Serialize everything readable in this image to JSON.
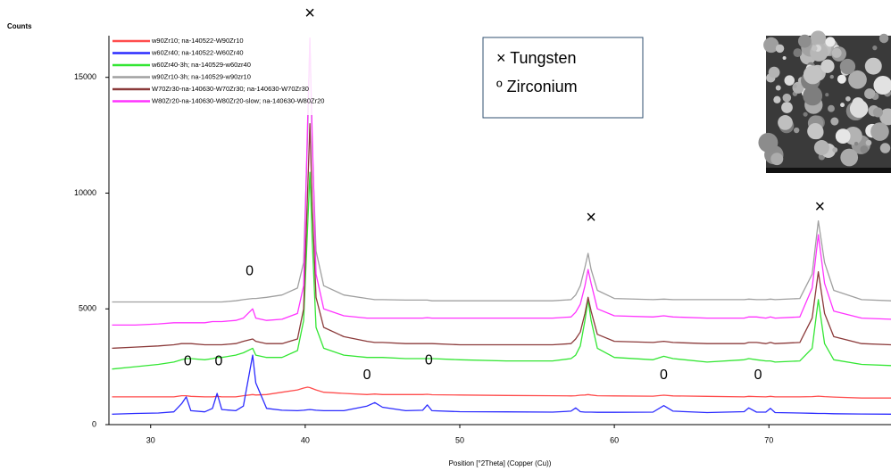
{
  "chart_data": {
    "type": "line",
    "y_label": "Counts",
    "x_label": "Position [°2Theta] (Copper (Cu))",
    "xlim": [
      27.3,
      77.9
    ],
    "ylim": [
      0,
      16800
    ],
    "xticks": [
      30,
      40,
      50,
      60,
      70
    ],
    "yticks": [
      0,
      5000,
      10000,
      15000
    ],
    "grid": false,
    "legend": "top-left",
    "key": [
      "× Tungsten",
      "º Zirconium"
    ],
    "x": [
      27.5,
      29,
      30.5,
      31.5,
      32.0,
      32.3,
      32.6,
      33.5,
      34.0,
      34.3,
      34.6,
      35.5,
      36.0,
      36.6,
      36.8,
      37.5,
      38.5,
      39.5,
      39.9,
      40.15,
      40.3,
      40.45,
      40.7,
      41.2,
      42.5,
      44.0,
      44.5,
      45.0,
      46.5,
      47.6,
      47.9,
      48.2,
      50,
      53,
      56,
      57.2,
      57.5,
      57.8,
      58.1,
      58.3,
      58.5,
      58.9,
      60,
      62.5,
      63.2,
      63.8,
      66,
      68.4,
      68.7,
      69.2,
      69.8,
      70.1,
      70.4,
      72.0,
      72.8,
      73.2,
      73.6,
      74.2,
      76,
      77.9
    ],
    "series": [
      {
        "name": "w90Zr10; na-140522-W90Zr10",
        "color": "#ff4d4d",
        "values": [
          1200,
          1200,
          1200,
          1200,
          1250,
          1250,
          1220,
          1200,
          1200,
          1220,
          1200,
          1200,
          1250,
          1300,
          1280,
          1300,
          1400,
          1500,
          1580,
          1620,
          1600,
          1560,
          1500,
          1400,
          1350,
          1300,
          1320,
          1300,
          1300,
          1300,
          1310,
          1290,
          1280,
          1260,
          1250,
          1240,
          1250,
          1270,
          1280,
          1300,
          1280,
          1250,
          1240,
          1230,
          1270,
          1240,
          1220,
          1200,
          1220,
          1210,
          1200,
          1220,
          1200,
          1200,
          1210,
          1230,
          1210,
          1190,
          1150,
          1150
        ]
      },
      {
        "name": "w60Zr40; na-140522-W60Zr40",
        "color": "#2b2bff",
        "values": [
          450,
          480,
          500,
          550,
          900,
          1200,
          600,
          550,
          700,
          1350,
          650,
          600,
          800,
          3000,
          1800,
          700,
          620,
          600,
          620,
          640,
          650,
          640,
          620,
          600,
          600,
          800,
          950,
          750,
          600,
          620,
          850,
          600,
          560,
          550,
          540,
          580,
          720,
          560,
          540,
          540,
          540,
          530,
          530,
          540,
          820,
          580,
          520,
          560,
          720,
          540,
          540,
          700,
          520,
          500,
          490,
          480,
          480,
          470,
          460,
          450
        ]
      },
      {
        "name": "w60Zr40-3h; na-140529-w60zr40",
        "color": "#33e633",
        "values": [
          2400,
          2500,
          2600,
          2700,
          2800,
          2850,
          2850,
          2800,
          2850,
          2900,
          2900,
          3000,
          3100,
          3300,
          3000,
          2900,
          2900,
          3200,
          4500,
          8500,
          10900,
          8000,
          4200,
          3300,
          3000,
          2900,
          2900,
          2900,
          2850,
          2850,
          2850,
          2850,
          2800,
          2750,
          2750,
          2850,
          3000,
          3400,
          4500,
          5400,
          4500,
          3300,
          2900,
          2800,
          2950,
          2850,
          2700,
          2800,
          2850,
          2800,
          2750,
          2750,
          2700,
          2750,
          3300,
          5400,
          3500,
          2800,
          2600,
          2550
        ]
      },
      {
        "name": "w90Zr10-3h; na-140529-w90zr10",
        "color": "#a0a0a0",
        "values": [
          5300,
          5300,
          5300,
          5300,
          5300,
          5300,
          5300,
          5300,
          5300,
          5300,
          5300,
          5350,
          5400,
          5450,
          5450,
          5500,
          5600,
          5900,
          7000,
          12500,
          16600,
          12000,
          7500,
          6000,
          5600,
          5450,
          5400,
          5400,
          5380,
          5380,
          5380,
          5350,
          5350,
          5350,
          5350,
          5400,
          5600,
          6000,
          6800,
          7400,
          6700,
          5800,
          5450,
          5400,
          5420,
          5400,
          5400,
          5400,
          5420,
          5400,
          5400,
          5420,
          5400,
          5450,
          6500,
          8800,
          7000,
          5800,
          5400,
          5350
        ]
      },
      {
        "name": "W70Zr30-na-140630-W70Zr30; na-140630-W70Zr30",
        "color": "#8b3a3a",
        "values": [
          3300,
          3350,
          3400,
          3450,
          3500,
          3500,
          3500,
          3450,
          3450,
          3450,
          3450,
          3500,
          3600,
          3700,
          3600,
          3500,
          3500,
          3700,
          5000,
          10000,
          13000,
          9500,
          5500,
          4200,
          3800,
          3600,
          3550,
          3550,
          3500,
          3500,
          3500,
          3500,
          3450,
          3450,
          3450,
          3500,
          3700,
          4000,
          4800,
          5500,
          4900,
          3900,
          3600,
          3550,
          3600,
          3550,
          3500,
          3500,
          3550,
          3550,
          3500,
          3550,
          3500,
          3550,
          4600,
          6600,
          4800,
          3800,
          3500,
          3450
        ]
      },
      {
        "name": "W80Zr20-na-140630-W80Zr20-slow; na-140630-W80Zr20",
        "color": "#ff33ff",
        "values": [
          4300,
          4300,
          4350,
          4400,
          4400,
          4400,
          4400,
          4400,
          4450,
          4450,
          4450,
          4500,
          4600,
          5000,
          4600,
          4500,
          4550,
          4800,
          6000,
          13000,
          16700,
          12500,
          6500,
          5000,
          4700,
          4600,
          4600,
          4600,
          4600,
          4600,
          4620,
          4600,
          4600,
          4600,
          4600,
          4650,
          4850,
          5200,
          6000,
          6700,
          6100,
          5000,
          4700,
          4650,
          4700,
          4650,
          4600,
          4600,
          4650,
          4650,
          4600,
          4650,
          4600,
          4650,
          5900,
          8200,
          6100,
          4900,
          4600,
          4550
        ]
      }
    ],
    "annotations": [
      {
        "text": "×",
        "x": 40.3,
        "y": 17730
      },
      {
        "text": "×",
        "x": 58.5,
        "y": 8920
      },
      {
        "text": "×",
        "x": 73.3,
        "y": 9380
      },
      {
        "text": "0",
        "x": 36.4,
        "y": 6620
      },
      {
        "text": "0",
        "x": 32.4,
        "y": 2730
      },
      {
        "text": "0",
        "x": 34.4,
        "y": 2730
      },
      {
        "text": "0",
        "x": 44.0,
        "y": 2120
      },
      {
        "text": "0",
        "x": 48.0,
        "y": 2770
      },
      {
        "text": "0",
        "x": 63.2,
        "y": 2120
      },
      {
        "text": "0",
        "x": 69.3,
        "y": 2120
      }
    ]
  }
}
